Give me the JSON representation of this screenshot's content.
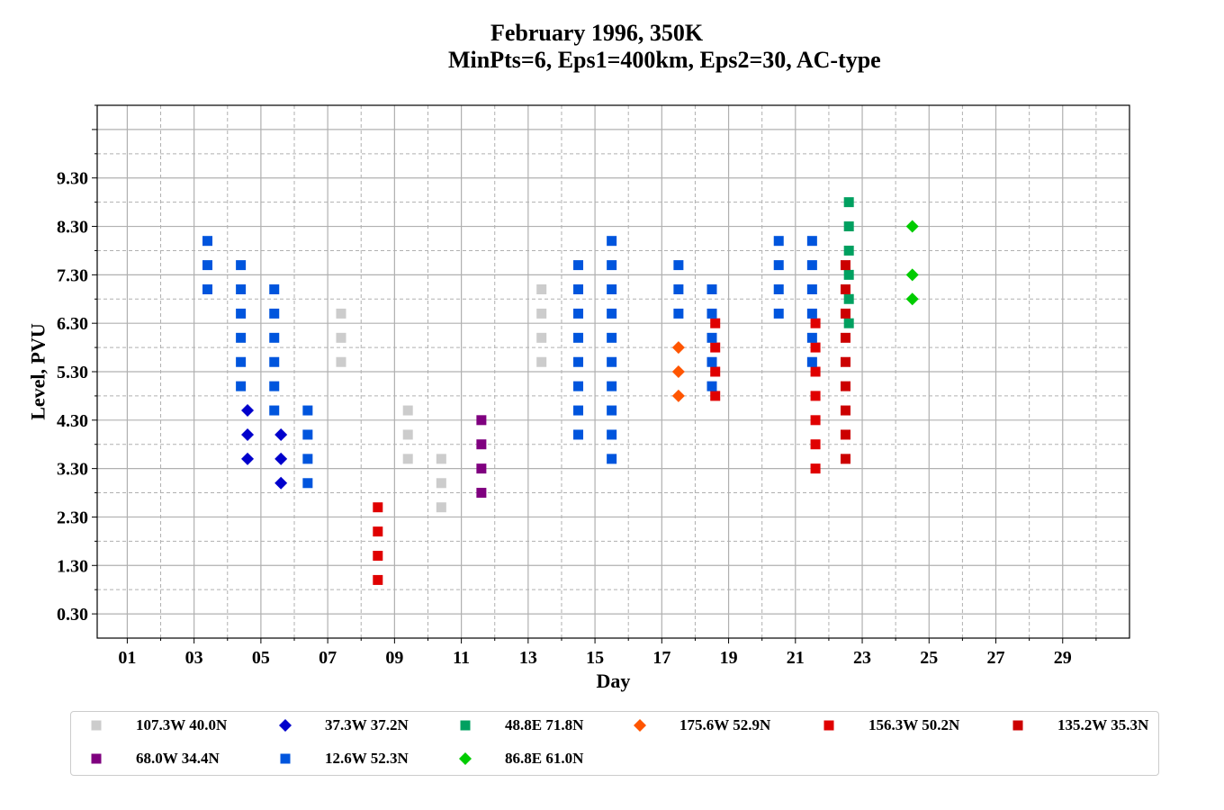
{
  "chart_data": {
    "type": "scatter",
    "title": "February 1996, 350K",
    "subtitle": "MinPts=6, Eps1=400km, Eps2=30, AC-type",
    "xlabel": "Day",
    "ylabel": "Level, PVU",
    "xlim": [
      0.1,
      31.0
    ],
    "ylim": [
      -0.2,
      10.8
    ],
    "x_ticks": [
      "01",
      "03",
      "05",
      "07",
      "09",
      "11",
      "13",
      "15",
      "17",
      "19",
      "21",
      "23",
      "25",
      "27",
      "29"
    ],
    "y_ticks": [
      "0.30",
      "1.30",
      "2.30",
      "3.30",
      "4.30",
      "5.30",
      "6.30",
      "7.30",
      "8.30",
      "9.30"
    ],
    "grid": true,
    "legend_position": "bottom",
    "series": [
      {
        "name": "107.3W 40.0N",
        "color": "#cccccc",
        "marker": "square",
        "points": [
          [
            7.4,
            6.5
          ],
          [
            7.4,
            6.0
          ],
          [
            7.4,
            5.5
          ],
          [
            9.4,
            4.5
          ],
          [
            9.4,
            4.0
          ],
          [
            9.4,
            3.5
          ],
          [
            10.4,
            3.5
          ],
          [
            10.4,
            3.0
          ],
          [
            10.4,
            2.5
          ],
          [
            13.4,
            7.0
          ],
          [
            13.4,
            6.5
          ],
          [
            13.4,
            6.0
          ],
          [
            13.4,
            5.5
          ]
        ]
      },
      {
        "name": "37.3W 37.2N",
        "color": "#0000cc",
        "marker": "diamond",
        "points": [
          [
            4.6,
            4.5
          ],
          [
            4.6,
            4.0
          ],
          [
            4.6,
            3.5
          ],
          [
            5.6,
            4.0
          ],
          [
            5.6,
            3.5
          ],
          [
            5.6,
            3.0
          ]
        ]
      },
      {
        "name": "48.8E 71.8N",
        "color": "#00a060",
        "marker": "square",
        "points": [
          [
            22.6,
            8.8
          ],
          [
            22.6,
            8.3
          ],
          [
            22.6,
            7.8
          ],
          [
            22.6,
            7.3
          ],
          [
            22.6,
            6.8
          ],
          [
            22.6,
            6.3
          ]
        ]
      },
      {
        "name": "175.6W 52.9N",
        "color": "#ff5500",
        "marker": "diamond",
        "points": [
          [
            17.5,
            5.8
          ],
          [
            17.5,
            5.3
          ],
          [
            17.5,
            4.8
          ]
        ]
      },
      {
        "name": "156.3W 50.2N",
        "color": "#e00000",
        "marker": "square",
        "points": [
          [
            8.5,
            2.5
          ],
          [
            8.5,
            2.0
          ],
          [
            8.5,
            1.5
          ],
          [
            8.5,
            1.0
          ],
          [
            18.6,
            6.3
          ],
          [
            18.6,
            5.8
          ],
          [
            18.6,
            5.3
          ],
          [
            18.6,
            4.8
          ],
          [
            21.6,
            6.3
          ],
          [
            21.6,
            5.8
          ],
          [
            21.6,
            5.3
          ],
          [
            21.6,
            4.8
          ],
          [
            21.6,
            4.3
          ],
          [
            21.6,
            3.8
          ],
          [
            21.6,
            3.3
          ]
        ]
      },
      {
        "name": "135.2W 35.3N",
        "color": "#cc0000",
        "marker": "square",
        "points": [
          [
            22.5,
            7.5
          ],
          [
            22.5,
            7.0
          ],
          [
            22.5,
            6.5
          ],
          [
            22.5,
            6.0
          ],
          [
            22.5,
            5.5
          ],
          [
            22.5,
            5.0
          ],
          [
            22.5,
            4.5
          ],
          [
            22.5,
            4.0
          ],
          [
            22.5,
            3.5
          ]
        ]
      },
      {
        "name": "68.0W 34.4N",
        "color": "#7f007f",
        "marker": "square",
        "points": [
          [
            11.6,
            4.3
          ],
          [
            11.6,
            3.8
          ],
          [
            11.6,
            3.3
          ],
          [
            11.6,
            2.8
          ]
        ]
      },
      {
        "name": "12.6W 52.3N",
        "color": "#0055dd",
        "marker": "square",
        "points": [
          [
            3.4,
            8.0
          ],
          [
            3.4,
            7.5
          ],
          [
            3.4,
            7.0
          ],
          [
            4.4,
            7.5
          ],
          [
            4.4,
            7.0
          ],
          [
            4.4,
            6.5
          ],
          [
            4.4,
            6.0
          ],
          [
            4.4,
            5.5
          ],
          [
            4.4,
            5.0
          ],
          [
            5.4,
            7.0
          ],
          [
            5.4,
            6.5
          ],
          [
            5.4,
            6.0
          ],
          [
            5.4,
            5.5
          ],
          [
            5.4,
            5.0
          ],
          [
            5.4,
            4.5
          ],
          [
            6.4,
            4.5
          ],
          [
            6.4,
            4.0
          ],
          [
            6.4,
            3.5
          ],
          [
            6.4,
            3.0
          ],
          [
            14.5,
            7.5
          ],
          [
            14.5,
            7.0
          ],
          [
            14.5,
            6.5
          ],
          [
            14.5,
            6.0
          ],
          [
            14.5,
            5.5
          ],
          [
            14.5,
            5.0
          ],
          [
            14.5,
            4.5
          ],
          [
            14.5,
            4.0
          ],
          [
            15.5,
            8.0
          ],
          [
            15.5,
            7.5
          ],
          [
            15.5,
            7.0
          ],
          [
            15.5,
            6.5
          ],
          [
            15.5,
            6.0
          ],
          [
            15.5,
            5.5
          ],
          [
            15.5,
            5.0
          ],
          [
            15.5,
            4.5
          ],
          [
            15.5,
            4.0
          ],
          [
            15.5,
            3.5
          ],
          [
            17.5,
            7.5
          ],
          [
            17.5,
            7.0
          ],
          [
            17.5,
            6.5
          ],
          [
            18.5,
            7.0
          ],
          [
            18.5,
            6.5
          ],
          [
            18.5,
            6.0
          ],
          [
            18.5,
            5.5
          ],
          [
            18.5,
            5.0
          ],
          [
            20.5,
            8.0
          ],
          [
            20.5,
            7.5
          ],
          [
            20.5,
            7.0
          ],
          [
            20.5,
            6.5
          ],
          [
            21.5,
            8.0
          ],
          [
            21.5,
            7.5
          ],
          [
            21.5,
            7.0
          ],
          [
            21.5,
            6.5
          ],
          [
            21.5,
            6.0
          ],
          [
            21.5,
            5.5
          ]
        ]
      },
      {
        "name": "86.8E 61.0N",
        "color": "#00cc00",
        "marker": "diamond",
        "points": [
          [
            24.5,
            8.3
          ],
          [
            24.5,
            7.3
          ],
          [
            24.5,
            6.8
          ]
        ]
      }
    ]
  }
}
